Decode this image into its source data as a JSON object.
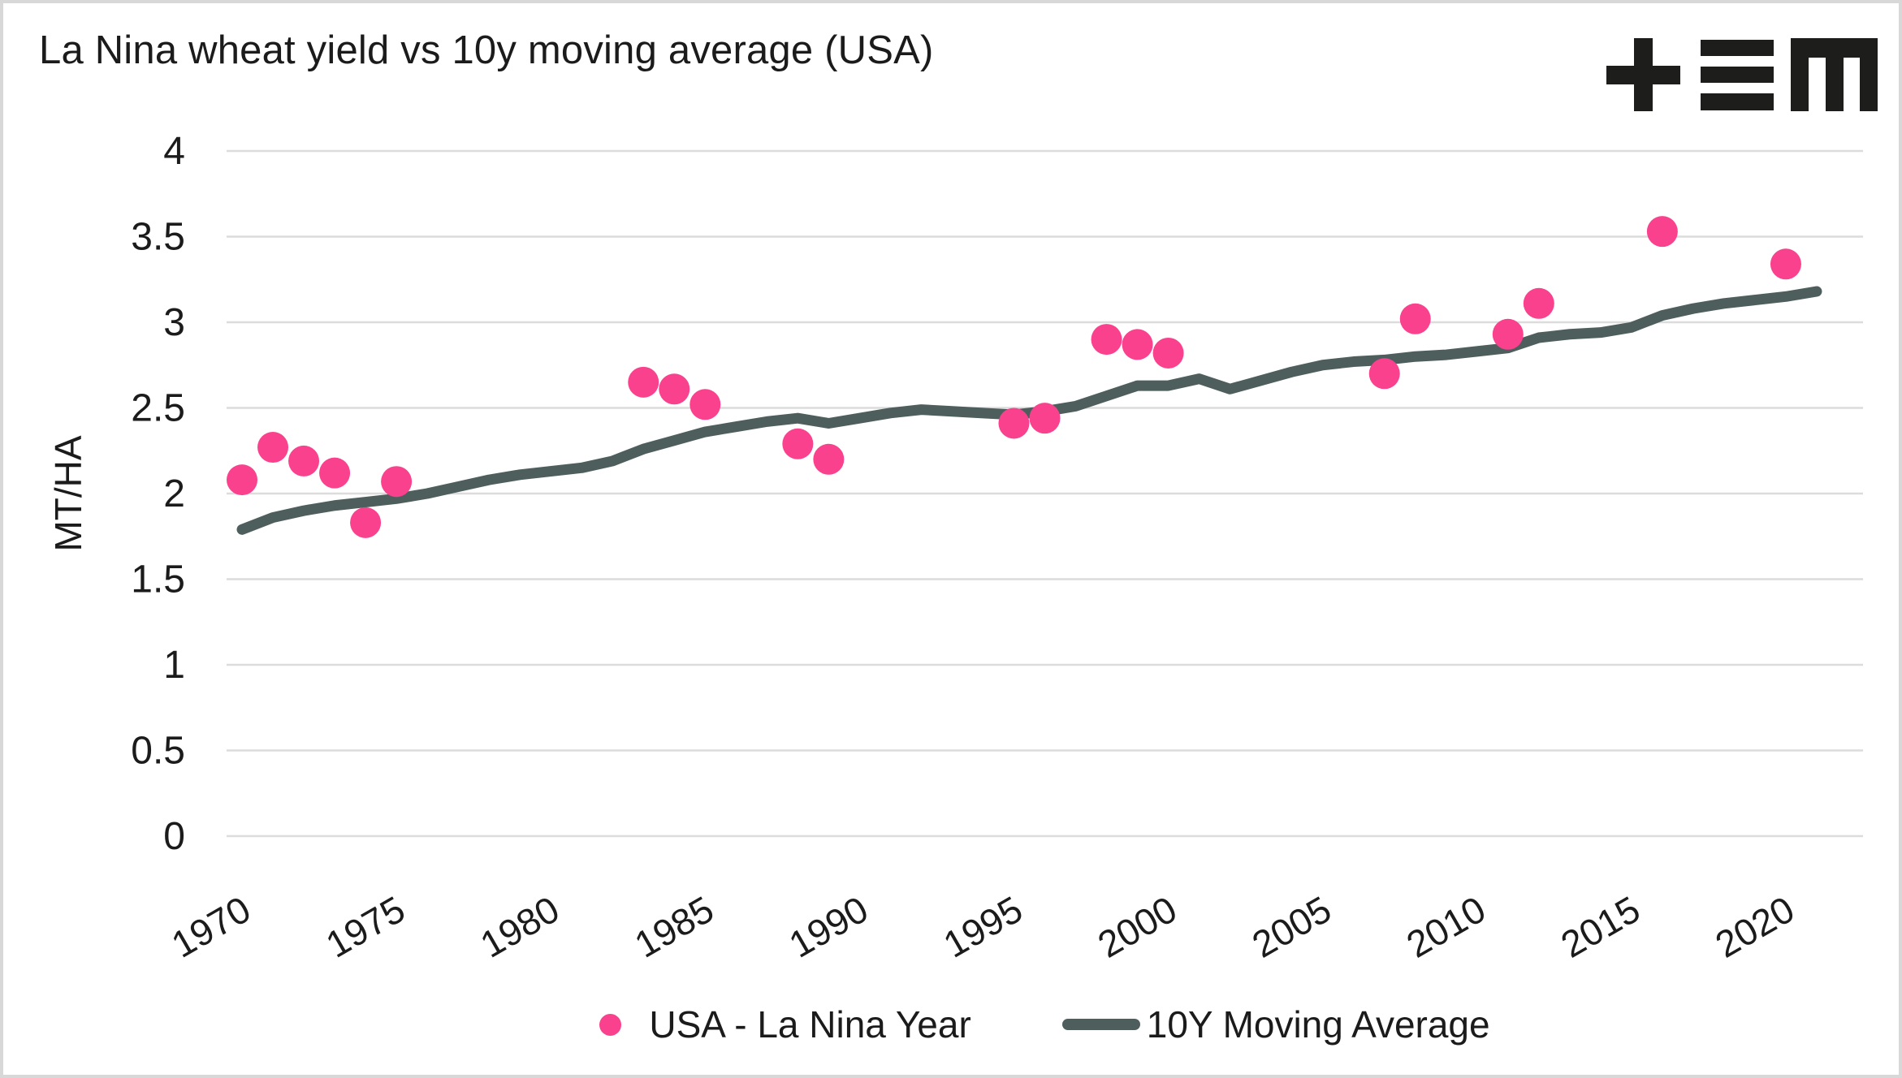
{
  "header": {
    "title": "La Nina wheat yield vs 10y moving average (USA)",
    "logo_name": "tem-logo",
    "logo_color": "#1d1d1b"
  },
  "colors": {
    "scatter": "#F9418D",
    "line": "#4E5E5D",
    "grid": "#DCDCDC",
    "text": "#1B1B1B",
    "border": "#D8D8D8"
  },
  "chart_data": {
    "type": "scatter+line",
    "title": "La Nina wheat yield vs 10y moving average (USA)",
    "xlabel": "",
    "ylabel": "MT/HA",
    "ylim": [
      0,
      4
    ],
    "xlim": [
      1969.5,
      2022.5
    ],
    "y_ticks": [
      "0",
      "0.5",
      "1",
      "1.5",
      "2",
      "2.5",
      "3",
      "3.5",
      "4"
    ],
    "x_ticks": [
      "1970",
      "1975",
      "1980",
      "1985",
      "1990",
      "1995",
      "2000",
      "2005",
      "2010",
      "2015",
      "2020"
    ],
    "grid": "horizontal",
    "legend_position": "bottom-center",
    "series": [
      {
        "name": "USA - La Nina Year",
        "type": "scatter",
        "color": "#F9418D",
        "marker_radius": 19,
        "points": [
          [
            1970,
            2.08
          ],
          [
            1971,
            2.27
          ],
          [
            1972,
            2.19
          ],
          [
            1973,
            2.12
          ],
          [
            1974,
            1.83
          ],
          [
            1975,
            2.07
          ],
          [
            1983,
            2.65
          ],
          [
            1984,
            2.61
          ],
          [
            1985,
            2.52
          ],
          [
            1988,
            2.29
          ],
          [
            1989,
            2.2
          ],
          [
            1995,
            2.41
          ],
          [
            1996,
            2.44
          ],
          [
            1998,
            2.9
          ],
          [
            1999,
            2.87
          ],
          [
            2000,
            2.82
          ],
          [
            2007,
            2.7
          ],
          [
            2008,
            3.02
          ],
          [
            2011,
            2.93
          ],
          [
            2012,
            3.11
          ],
          [
            2016,
            3.53
          ],
          [
            2020,
            3.34
          ]
        ]
      },
      {
        "name": "10Y Moving Average",
        "type": "line",
        "color": "#4E5E5D",
        "stroke_width": 13,
        "points": [
          [
            1970,
            1.79
          ],
          [
            1971,
            1.86
          ],
          [
            1972,
            1.9
          ],
          [
            1973,
            1.93
          ],
          [
            1974,
            1.95
          ],
          [
            1975,
            1.97
          ],
          [
            1976,
            2.0
          ],
          [
            1977,
            2.04
          ],
          [
            1978,
            2.08
          ],
          [
            1979,
            2.11
          ],
          [
            1980,
            2.13
          ],
          [
            1981,
            2.15
          ],
          [
            1982,
            2.19
          ],
          [
            1983,
            2.26
          ],
          [
            1984,
            2.31
          ],
          [
            1985,
            2.36
          ],
          [
            1986,
            2.39
          ],
          [
            1987,
            2.42
          ],
          [
            1988,
            2.44
          ],
          [
            1989,
            2.41
          ],
          [
            1990,
            2.44
          ],
          [
            1991,
            2.47
          ],
          [
            1992,
            2.49
          ],
          [
            1993,
            2.48
          ],
          [
            1994,
            2.47
          ],
          [
            1995,
            2.46
          ],
          [
            1996,
            2.48
          ],
          [
            1997,
            2.51
          ],
          [
            1998,
            2.57
          ],
          [
            1999,
            2.63
          ],
          [
            2000,
            2.63
          ],
          [
            2001,
            2.67
          ],
          [
            2002,
            2.61
          ],
          [
            2003,
            2.66
          ],
          [
            2004,
            2.71
          ],
          [
            2005,
            2.75
          ],
          [
            2006,
            2.77
          ],
          [
            2007,
            2.78
          ],
          [
            2008,
            2.8
          ],
          [
            2009,
            2.81
          ],
          [
            2010,
            2.83
          ],
          [
            2011,
            2.85
          ],
          [
            2012,
            2.91
          ],
          [
            2013,
            2.93
          ],
          [
            2014,
            2.94
          ],
          [
            2015,
            2.97
          ],
          [
            2016,
            3.04
          ],
          [
            2017,
            3.08
          ],
          [
            2018,
            3.11
          ],
          [
            2019,
            3.13
          ],
          [
            2020,
            3.15
          ],
          [
            2021,
            3.18
          ]
        ]
      }
    ]
  }
}
